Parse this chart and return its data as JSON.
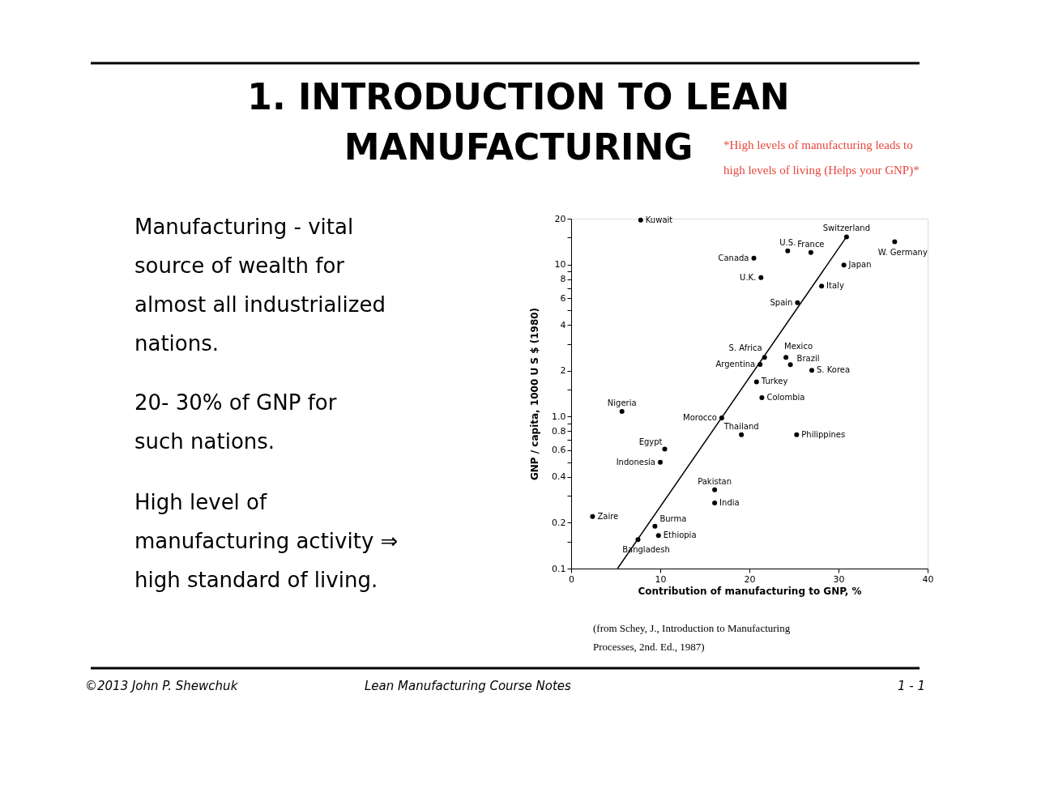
{
  "chart_data": {
    "type": "scatter",
    "title": "1. INTRODUCTION TO LEAN MANUFACTURING",
    "xlabel": "Contribution of manufacturing to GNP, %",
    "ylabel": "GNP / capita, 1000 U S $ (1980)",
    "log": "y",
    "grid": false,
    "xlim": [
      0,
      40
    ],
    "xticks": [
      0,
      10,
      20,
      30,
      40
    ],
    "ylim": [
      0.1,
      20
    ],
    "yticks": [
      0.1,
      {
        "value": 0.15,
        "label": null
      },
      0.2,
      {
        "value": 0.3,
        "label": null
      },
      0.4,
      {
        "value": 0.5,
        "label": null
      },
      0.6,
      {
        "value": 0.7,
        "label": null
      },
      0.8,
      {
        "value": 0.9,
        "label": null
      },
      {
        "value": 1,
        "label": "1.0"
      },
      {
        "value": 1.5,
        "label": null
      },
      2,
      {
        "value": 3,
        "label": null
      },
      4,
      {
        "value": 5,
        "label": null
      },
      6,
      {
        "value": 7,
        "label": null
      },
      8,
      {
        "value": 9,
        "label": null
      },
      10,
      {
        "value": 15,
        "label": null
      },
      20
    ],
    "series": [
      {
        "type": "scatter",
        "marker": "circle",
        "color": "#000000",
        "x": [
          7.8,
          20.5,
          24.3,
          26.9,
          30.9,
          36.3,
          30.6,
          21.3,
          28.1,
          25.4,
          21.7,
          21.2,
          24.1,
          24.6,
          27.0,
          20.8,
          21.4,
          19.1,
          25.3,
          16.9,
          5.7,
          10.5,
          10.0,
          16.1,
          16.1,
          2.4,
          9.4,
          9.8,
          7.5
        ],
        "values": [
          19.6,
          11.0,
          12.3,
          12.0,
          15.2,
          14.1,
          9.9,
          8.2,
          7.2,
          5.6,
          2.45,
          2.2,
          2.45,
          2.19,
          2.01,
          1.69,
          1.33,
          0.76,
          0.76,
          0.98,
          1.08,
          0.61,
          0.5,
          0.33,
          0.27,
          0.22,
          0.19,
          0.165,
          0.155
        ]
      },
      {
        "type": "line",
        "marker": "none",
        "color": "#000000",
        "line_style": "solid",
        "x": [
          5.2,
          30.9
        ],
        "values": [
          0.1,
          15.2
        ]
      }
    ],
    "annotations": [
      {
        "text": "Kuwait",
        "x": 7.8,
        "y": 19.6
      },
      {
        "text": "Canada",
        "x": 20.5,
        "y": 11.0
      },
      {
        "text": "U.S.",
        "x": 24.3,
        "y": 12.3
      },
      {
        "text": "France",
        "x": 26.9,
        "y": 12.0
      },
      {
        "text": "Switzerland",
        "x": 30.9,
        "y": 15.2
      },
      {
        "text": "W. Germany",
        "x": 36.3,
        "y": 14.1
      },
      {
        "text": "Japan",
        "x": 30.6,
        "y": 9.9
      },
      {
        "text": "U.K.",
        "x": 21.3,
        "y": 8.2
      },
      {
        "text": "Italy",
        "x": 28.1,
        "y": 7.2
      },
      {
        "text": "Spain",
        "x": 25.4,
        "y": 5.6
      },
      {
        "text": "S. Africa",
        "x": 21.7,
        "y": 2.45
      },
      {
        "text": "Argentina",
        "x": 21.2,
        "y": 2.2
      },
      {
        "text": "Mexico",
        "x": 24.1,
        "y": 2.45
      },
      {
        "text": "Brazil",
        "x": 24.6,
        "y": 2.19
      },
      {
        "text": "S. Korea",
        "x": 27.0,
        "y": 2.01
      },
      {
        "text": "Turkey",
        "x": 20.8,
        "y": 1.69
      },
      {
        "text": "Colombia",
        "x": 21.4,
        "y": 1.33
      },
      {
        "text": "Thailand",
        "x": 19.1,
        "y": 0.76
      },
      {
        "text": "Philippines",
        "x": 25.3,
        "y": 0.76
      },
      {
        "text": "Morocco",
        "x": 16.9,
        "y": 0.98
      },
      {
        "text": "Nigeria",
        "x": 5.7,
        "y": 1.08
      },
      {
        "text": "Egypt",
        "x": 10.5,
        "y": 0.61
      },
      {
        "text": "Indonesia",
        "x": 10.0,
        "y": 0.5
      },
      {
        "text": "Pakistan",
        "x": 16.1,
        "y": 0.33
      },
      {
        "text": "India",
        "x": 16.1,
        "y": 0.27
      },
      {
        "text": "Zaire",
        "x": 2.4,
        "y": 0.22
      },
      {
        "text": "Burma",
        "x": 9.4,
        "y": 0.19
      },
      {
        "text": "Ethiopia",
        "x": 9.8,
        "y": 0.165
      },
      {
        "text": "Bangladesh",
        "x": 7.5,
        "y": 0.155
      },
      "*High levels of manufacturing leads to high levels of living (Helps your GNP)*",
      "Manufacturing - vital source of wealth for almost all industrialized nations.",
      "20- 30% of GNP for such nations.",
      "High level of manufacturing activity ⇒ high standard of living.",
      "(from Schey, J., Introduction to Manufacturing Processes, 2nd. Ed., 1987)",
      "©2013 John P. Shewchuk",
      "Lean Manufacturing Course Notes",
      "1 - 1"
    ]
  }
}
